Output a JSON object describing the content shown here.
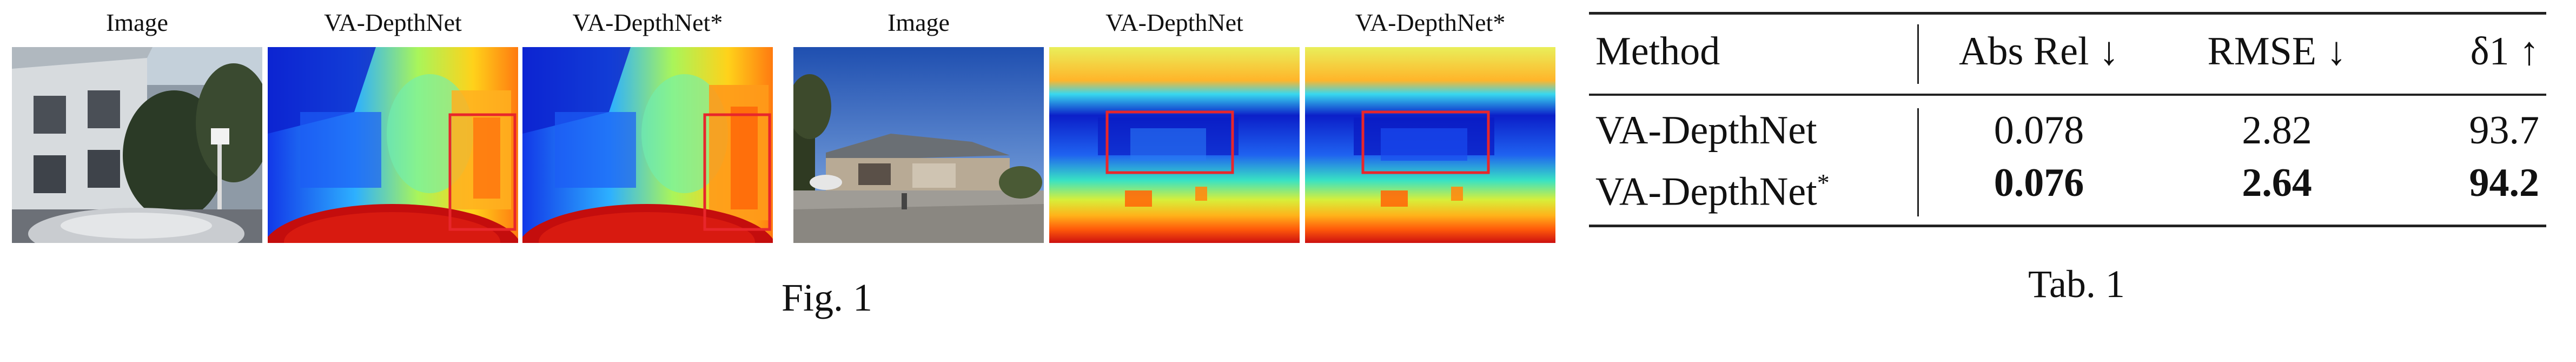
{
  "figure": {
    "caption": "Fig. 1",
    "groups": [
      {
        "labels": [
          "Image",
          "VA-DepthNet",
          "VA-DepthNet*"
        ]
      },
      {
        "labels": [
          "Image",
          "VA-DepthNet",
          "VA-DepthNet*"
        ]
      }
    ],
    "highlight_color": "#e8262b"
  },
  "table": {
    "caption": "Tab. 1",
    "headers": [
      "Method",
      "Abs Rel ↓",
      "RMSE ↓",
      "δ1 ↑"
    ],
    "rows": [
      {
        "method": "VA-DepthNet",
        "method_suffix": "",
        "abs_rel": "0.078",
        "rmse": "2.82",
        "delta1": "93.7",
        "bold": false
      },
      {
        "method": "VA-DepthNet",
        "method_suffix": "*",
        "abs_rel": "0.076",
        "rmse": "2.64",
        "delta1": "94.2",
        "bold": true
      }
    ]
  }
}
